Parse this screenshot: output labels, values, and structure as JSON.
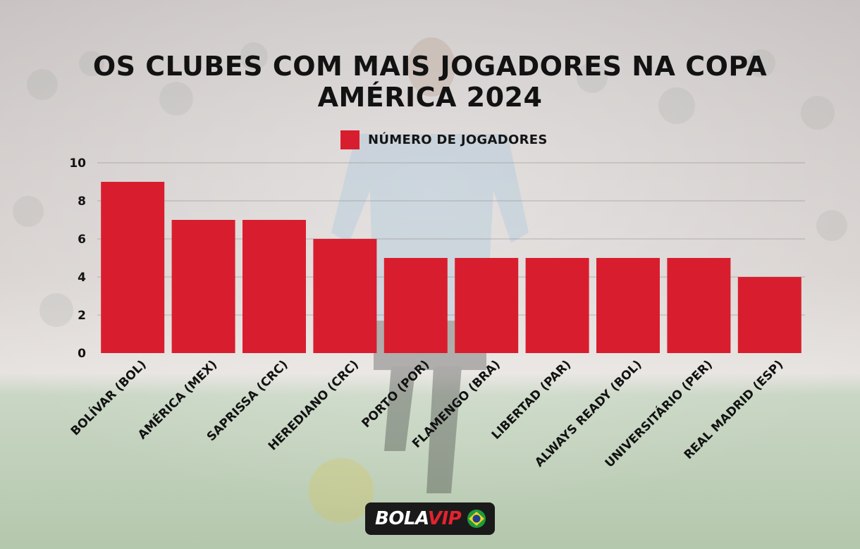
{
  "title_lines": [
    "OS CLUBES COM MAIS JOGADORES NA COPA",
    "AMÉRICA 2024"
  ],
  "legend": {
    "label": "NÚMERO DE JOGADORES"
  },
  "logo": {
    "part1": "BOLA",
    "part2": "VIP",
    "icon": "brazil-flag-icon"
  },
  "colors": {
    "bar": "#d81e2e",
    "text": "#121212",
    "logo_bg": "#1a1a1a",
    "logo_accent": "#e3232f"
  },
  "chart_data": {
    "type": "bar",
    "title": "OS CLUBES COM MAIS JOGADORES NA COPA AMÉRICA 2024",
    "categories": [
      "BOLÍVAR (BOL)",
      "AMÉRICA (MEX)",
      "SAPRISSA (CRC)",
      "HEREDIANO (CRC)",
      "PORTO (POR)",
      "FLAMENGO (BRA)",
      "LIBERTAD (PAR)",
      "ALWAYS READY (BOL)",
      "UNIVERSITÁRIO (PER)",
      "REAL MADRID (ESP)"
    ],
    "series": [
      {
        "name": "NÚMERO DE JOGADORES",
        "values": [
          9,
          7,
          7,
          6,
          5,
          5,
          5,
          5,
          5,
          4
        ]
      }
    ],
    "yticks": [
      0,
      2,
      4,
      6,
      8,
      10
    ],
    "ylim": [
      0,
      10
    ],
    "xlabel": "",
    "ylabel": "",
    "grid": true,
    "legend_position": "top-center"
  }
}
